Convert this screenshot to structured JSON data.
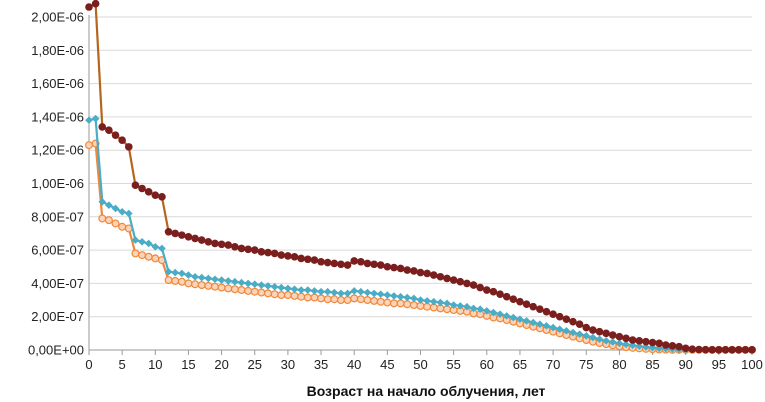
{
  "chart_data": {
    "type": "line",
    "title": "",
    "xlabel": "Возраст на начало облучения, лет",
    "ylabel": "",
    "xlim": [
      0,
      100
    ],
    "ylim": [
      0,
      2e-06
    ],
    "x_ticks": [
      0,
      5,
      10,
      15,
      20,
      25,
      30,
      35,
      40,
      45,
      50,
      55,
      60,
      65,
      70,
      75,
      80,
      85,
      90,
      95,
      100
    ],
    "x_tick_labels": [
      "0",
      "5",
      "10",
      "15",
      "20",
      "25",
      "30",
      "35",
      "40",
      "45",
      "50",
      "55",
      "60",
      "65",
      "70",
      "75",
      "80",
      "85",
      "90",
      "95",
      "100"
    ],
    "y_ticks": [
      0,
      2e-07,
      4e-07,
      6e-07,
      8e-07,
      1e-06,
      1.2e-06,
      1.4e-06,
      1.6e-06,
      1.8e-06,
      2e-06
    ],
    "y_tick_labels": [
      "0,00E+00",
      "2,00E-07",
      "4,00E-07",
      "6,00E-07",
      "8,00E-07",
      "1,00E-06",
      "1,20E-06",
      "1,40E-06",
      "1,60E-06",
      "1,80E-06",
      "2,00E-06"
    ],
    "grid": true,
    "legend": "none",
    "series": [
      {
        "color": "#7b1e1e",
        "line_color": "#b5651d",
        "marker": "circle",
        "x": [
          0,
          1,
          2,
          3,
          4,
          5,
          6,
          7,
          8,
          9,
          10,
          11,
          12,
          13,
          14,
          15,
          16,
          17,
          18,
          19,
          20,
          21,
          22,
          23,
          24,
          25,
          26,
          27,
          28,
          29,
          30,
          31,
          32,
          33,
          34,
          35,
          36,
          37,
          38,
          39,
          40,
          41,
          42,
          43,
          44,
          45,
          46,
          47,
          48,
          49,
          50,
          51,
          52,
          53,
          54,
          55,
          56,
          57,
          58,
          59,
          60,
          61,
          62,
          63,
          64,
          65,
          66,
          67,
          68,
          69,
          70,
          71,
          72,
          73,
          74,
          75,
          76,
          77,
          78,
          79,
          80,
          81,
          82,
          83,
          84,
          85,
          86,
          87,
          88,
          89,
          90,
          91,
          92,
          93,
          94,
          95,
          96,
          97,
          98,
          99,
          100
        ],
        "y": [
          2.06e-06,
          2.08e-06,
          1.34e-06,
          1.32e-06,
          1.29e-06,
          1.26e-06,
          1.22e-06,
          9.9e-07,
          9.7e-07,
          9.5e-07,
          9.3e-07,
          9.2e-07,
          7.1e-07,
          7e-07,
          6.9e-07,
          6.8e-07,
          6.7e-07,
          6.6e-07,
          6.5e-07,
          6.4e-07,
          6.35e-07,
          6.3e-07,
          6.2e-07,
          6.1e-07,
          6.05e-07,
          6e-07,
          5.9e-07,
          5.85e-07,
          5.8e-07,
          5.7e-07,
          5.65e-07,
          5.6e-07,
          5.5e-07,
          5.45e-07,
          5.4e-07,
          5.3e-07,
          5.25e-07,
          5.2e-07,
          5.15e-07,
          5.1e-07,
          5.35e-07,
          5.3e-07,
          5.2e-07,
          5.15e-07,
          5.1e-07,
          5e-07,
          4.95e-07,
          4.9e-07,
          4.8e-07,
          4.75e-07,
          4.65e-07,
          4.6e-07,
          4.5e-07,
          4.4e-07,
          4.3e-07,
          4.2e-07,
          4.1e-07,
          4e-07,
          3.9e-07,
          3.75e-07,
          3.6e-07,
          3.5e-07,
          3.35e-07,
          3.2e-07,
          3.05e-07,
          2.9e-07,
          2.75e-07,
          2.6e-07,
          2.45e-07,
          2.3e-07,
          2.15e-07,
          2e-07,
          1.85e-07,
          1.7e-07,
          1.55e-07,
          1.35e-07,
          1.2e-07,
          1.1e-07,
          1e-07,
          9e-08,
          8e-08,
          7e-08,
          6e-08,
          5.5e-08,
          5e-08,
          4.5e-08,
          4e-08,
          3e-08,
          2.5e-08,
          2e-08,
          1e-08,
          5e-09,
          3e-09,
          2e-09,
          1e-09,
          1e-09,
          1e-09,
          1e-09,
          1e-09,
          1e-09,
          1e-09
        ]
      },
      {
        "color": "#4bacc6",
        "line_color": "#4bacc6",
        "marker": "diamond",
        "x": [
          0,
          1,
          2,
          3,
          4,
          5,
          6,
          7,
          8,
          9,
          10,
          11,
          12,
          13,
          14,
          15,
          16,
          17,
          18,
          19,
          20,
          21,
          22,
          23,
          24,
          25,
          26,
          27,
          28,
          29,
          30,
          31,
          32,
          33,
          34,
          35,
          36,
          37,
          38,
          39,
          40,
          41,
          42,
          43,
          44,
          45,
          46,
          47,
          48,
          49,
          50,
          51,
          52,
          53,
          54,
          55,
          56,
          57,
          58,
          59,
          60,
          61,
          62,
          63,
          64,
          65,
          66,
          67,
          68,
          69,
          70,
          71,
          72,
          73,
          74,
          75,
          76,
          77,
          78,
          79,
          80,
          81,
          82,
          83,
          84,
          85,
          86,
          87,
          88,
          89,
          90,
          91,
          92,
          93,
          94,
          95,
          96,
          97,
          98,
          99,
          100
        ],
        "y": [
          1.38e-06,
          1.39e-06,
          8.9e-07,
          8.7e-07,
          8.5e-07,
          8.3e-07,
          8.2e-07,
          6.6e-07,
          6.5e-07,
          6.4e-07,
          6.2e-07,
          6.1e-07,
          4.7e-07,
          4.65e-07,
          4.6e-07,
          4.5e-07,
          4.4e-07,
          4.35e-07,
          4.3e-07,
          4.25e-07,
          4.2e-07,
          4.15e-07,
          4.1e-07,
          4.05e-07,
          4e-07,
          3.95e-07,
          3.9e-07,
          3.85e-07,
          3.8e-07,
          3.75e-07,
          3.7e-07,
          3.65e-07,
          3.6e-07,
          3.6e-07,
          3.55e-07,
          3.5e-07,
          3.5e-07,
          3.45e-07,
          3.4e-07,
          3.4e-07,
          3.55e-07,
          3.5e-07,
          3.45e-07,
          3.4e-07,
          3.35e-07,
          3.3e-07,
          3.25e-07,
          3.2e-07,
          3.15e-07,
          3.1e-07,
          3e-07,
          2.95e-07,
          2.9e-07,
          2.85e-07,
          2.8e-07,
          2.7e-07,
          2.65e-07,
          2.6e-07,
          2.5e-07,
          2.45e-07,
          2.35e-07,
          2.25e-07,
          2.15e-07,
          2.05e-07,
          1.95e-07,
          1.85e-07,
          1.75e-07,
          1.65e-07,
          1.55e-07,
          1.45e-07,
          1.35e-07,
          1.25e-07,
          1.15e-07,
          1.05e-07,
          9.5e-08,
          8.5e-08,
          7.5e-08,
          6.5e-08,
          5.5e-08,
          4.8e-08,
          4e-08,
          3.4e-08,
          2.8e-08,
          2.3e-08,
          1.8e-08,
          1.4e-08,
          1e-08,
          8e-09,
          6e-09,
          4e-09,
          2e-09,
          1e-09,
          1e-09,
          1e-09,
          1e-09,
          1e-09,
          1e-09,
          1e-09,
          1e-09,
          1e-09,
          1e-09
        ]
      },
      {
        "color": "#f0a070",
        "line_color": "#f0883a",
        "marker": "circle-open",
        "x": [
          0,
          1,
          2,
          3,
          4,
          5,
          6,
          7,
          8,
          9,
          10,
          11,
          12,
          13,
          14,
          15,
          16,
          17,
          18,
          19,
          20,
          21,
          22,
          23,
          24,
          25,
          26,
          27,
          28,
          29,
          30,
          31,
          32,
          33,
          34,
          35,
          36,
          37,
          38,
          39,
          40,
          41,
          42,
          43,
          44,
          45,
          46,
          47,
          48,
          49,
          50,
          51,
          52,
          53,
          54,
          55,
          56,
          57,
          58,
          59,
          60,
          61,
          62,
          63,
          64,
          65,
          66,
          67,
          68,
          69,
          70,
          71,
          72,
          73,
          74,
          75,
          76,
          77,
          78,
          79,
          80,
          81,
          82,
          83,
          84,
          85,
          86,
          87,
          88,
          89,
          90,
          91,
          92,
          93,
          94,
          95,
          96,
          97,
          98,
          99,
          100
        ],
        "y": [
          1.23e-06,
          1.24e-06,
          7.9e-07,
          7.8e-07,
          7.6e-07,
          7.4e-07,
          7.3e-07,
          5.8e-07,
          5.7e-07,
          5.6e-07,
          5.5e-07,
          5.4e-07,
          4.2e-07,
          4.15e-07,
          4.1e-07,
          4e-07,
          3.95e-07,
          3.9e-07,
          3.85e-07,
          3.8e-07,
          3.75e-07,
          3.7e-07,
          3.65e-07,
          3.6e-07,
          3.55e-07,
          3.5e-07,
          3.45e-07,
          3.4e-07,
          3.35e-07,
          3.3e-07,
          3.3e-07,
          3.25e-07,
          3.2e-07,
          3.15e-07,
          3.15e-07,
          3.1e-07,
          3.05e-07,
          3.05e-07,
          3e-07,
          3e-07,
          3.1e-07,
          3.05e-07,
          3e-07,
          2.95e-07,
          2.9e-07,
          2.85e-07,
          2.8e-07,
          2.8e-07,
          2.75e-07,
          2.7e-07,
          2.65e-07,
          2.6e-07,
          2.55e-07,
          2.5e-07,
          2.45e-07,
          2.4e-07,
          2.35e-07,
          2.3e-07,
          2.2e-07,
          2.15e-07,
          2.05e-07,
          1.95e-07,
          1.9e-07,
          1.8e-07,
          1.7e-07,
          1.6e-07,
          1.5e-07,
          1.4e-07,
          1.3e-07,
          1.2e-07,
          1.1e-07,
          1e-07,
          9e-08,
          8e-08,
          7e-08,
          6e-08,
          5e-08,
          4.2e-08,
          3.5e-08,
          2.8e-08,
          2.2e-08,
          1.7e-08,
          1.3e-08,
          1e-08,
          7e-09,
          5e-09,
          3e-09,
          2e-09,
          1e-09,
          1e-09,
          1e-09,
          1e-09,
          1e-09,
          1e-09,
          1e-09,
          1e-09,
          1e-09,
          1e-09,
          1e-09,
          1e-09,
          1e-09
        ]
      }
    ]
  }
}
